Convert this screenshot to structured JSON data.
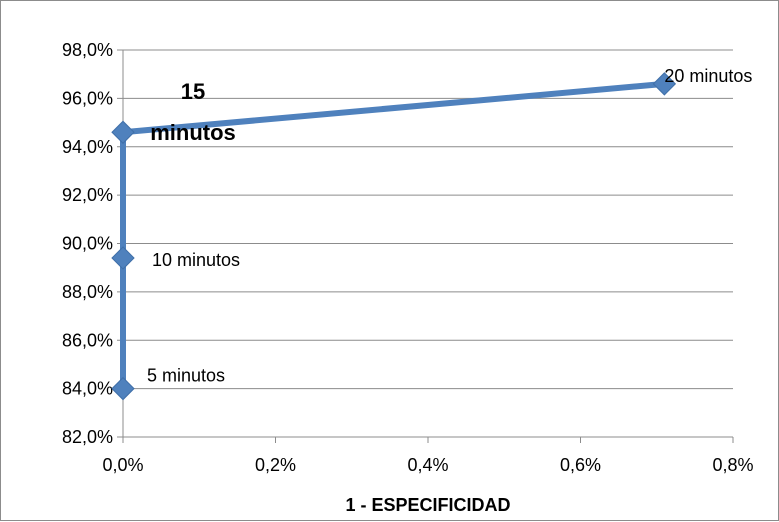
{
  "chart_data": {
    "type": "line",
    "title": "",
    "xlabel": "1 - ESPECIFICIDAD",
    "ylabel": "",
    "xlim": [
      0,
      0.8
    ],
    "ylim": [
      82,
      98
    ],
    "x_ticks": [
      "0,0%",
      "0,2%",
      "0,4%",
      "0,6%",
      "0,8%"
    ],
    "y_ticks": [
      "82,0%",
      "84,0%",
      "86,0%",
      "88,0%",
      "90,0%",
      "92,0%",
      "94,0%",
      "96,0%",
      "98,0%"
    ],
    "grid": "horizontal",
    "legend": "none",
    "series": [
      {
        "color": "#4f81bd",
        "points": [
          {
            "x": 0.0,
            "y": 84.0,
            "label": "5 minutos"
          },
          {
            "x": 0.0,
            "y": 89.4,
            "label": "10 minutos"
          },
          {
            "x": 0.0,
            "y": 94.6,
            "label": "15 minutos"
          },
          {
            "x": 0.71,
            "y": 96.6,
            "label": "20 minutos"
          }
        ]
      }
    ]
  }
}
